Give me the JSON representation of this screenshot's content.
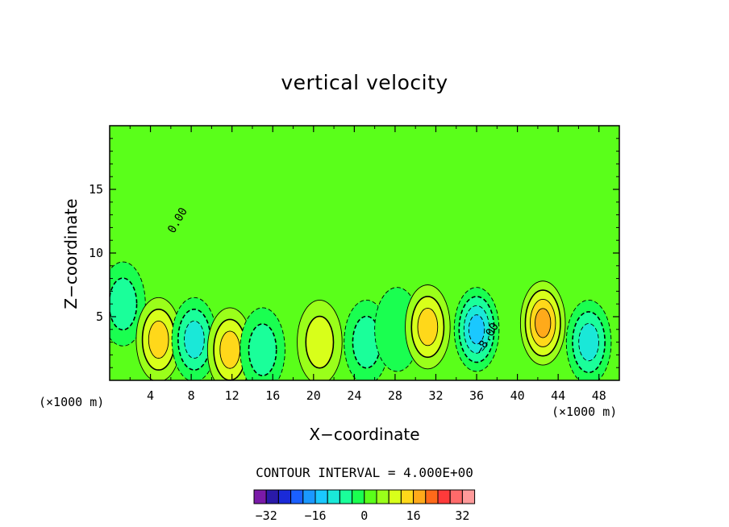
{
  "chart_data": {
    "type": "heatmap",
    "title": "vertical velocity",
    "xlabel": "X−coordinate",
    "ylabel": "Z−coordinate",
    "x_unit_left": "(×1000 m)",
    "x_unit_right": "(×1000 m)",
    "xlim": [
      0,
      50
    ],
    "ylim": [
      0,
      20
    ],
    "x_ticks": [
      4,
      8,
      12,
      16,
      20,
      24,
      28,
      32,
      36,
      40,
      44,
      48
    ],
    "y_ticks": [
      5,
      10,
      15
    ],
    "contour_interval_text": "CONTOUR INTERVAL = 4.000E+00",
    "contour_labels": [
      {
        "text": "0.00",
        "x": 6.3,
        "y": 11.5
      },
      {
        "text": "−8.00",
        "x": 36.5,
        "y": 2.0
      }
    ],
    "background_value": 0,
    "cells": [
      {
        "x": 1.3,
        "y": 6.0,
        "value": -8,
        "kind": "down"
      },
      {
        "x": 4.8,
        "y": 3.2,
        "value": 12,
        "kind": "up"
      },
      {
        "x": 8.3,
        "y": 3.2,
        "value": -12,
        "kind": "down"
      },
      {
        "x": 11.8,
        "y": 2.4,
        "value": 12,
        "kind": "up"
      },
      {
        "x": 15.0,
        "y": 2.4,
        "value": -8,
        "kind": "down"
      },
      {
        "x": 20.6,
        "y": 3.0,
        "value": 8,
        "kind": "up"
      },
      {
        "x": 25.2,
        "y": 3.0,
        "value": -8,
        "kind": "down"
      },
      {
        "x": 28.2,
        "y": 4.0,
        "value": -4,
        "kind": "down"
      },
      {
        "x": 31.2,
        "y": 4.2,
        "value": 12,
        "kind": "up"
      },
      {
        "x": 36.0,
        "y": 4.0,
        "value": -16,
        "kind": "down"
      },
      {
        "x": 42.5,
        "y": 4.5,
        "value": 16,
        "kind": "up"
      },
      {
        "x": 47.0,
        "y": 3.0,
        "value": -12,
        "kind": "down"
      }
    ],
    "colorbar": {
      "colors": [
        "#7a1aa8",
        "#2a1aa8",
        "#1a2ad8",
        "#1a60ff",
        "#1a98ff",
        "#1ac8ff",
        "#1ae8d8",
        "#1aff9a",
        "#1aff50",
        "#5aff1a",
        "#9aff1a",
        "#d8ff1a",
        "#ffd81a",
        "#ffaa1a",
        "#ff6a1a",
        "#ff3a3a",
        "#ff6a6a",
        "#ff9a9a"
      ],
      "labels": [
        "−32",
        "−16",
        "0",
        "16",
        "32"
      ]
    },
    "grid": false
  }
}
